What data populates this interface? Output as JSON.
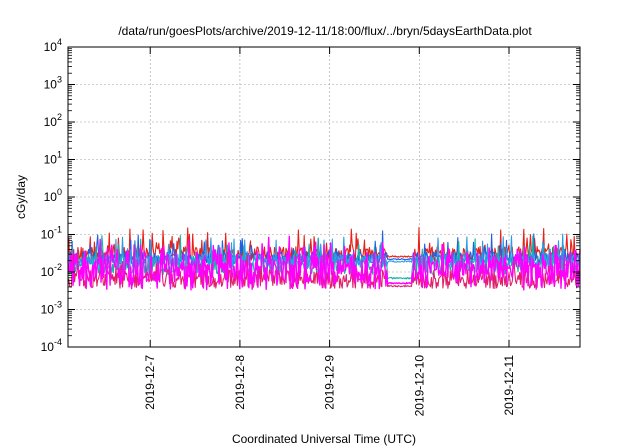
{
  "chart_data": {
    "type": "line",
    "title": "/data/run/goesPlots/archive/2019-12-11/18:00/flux/../bryn/5daysEarthData.plot",
    "xlabel": "Coordinated Universal Time (UTC)",
    "ylabel": "cGy/day",
    "yscale": "log",
    "ylim": [
      0.0001,
      10000
    ],
    "xlim": [
      "2019-12-06 02:00",
      "2019-12-11 19:00"
    ],
    "x_ticks": [
      "2019-12-7",
      "2019-12-8",
      "2019-12-9",
      "2019-12-10",
      "2019-12-11"
    ],
    "y_ticks": [
      {
        "base": "10",
        "exp": "-4",
        "value": 0.0001
      },
      {
        "base": "10",
        "exp": "-3",
        "value": 0.001
      },
      {
        "base": "10",
        "exp": "-2",
        "value": 0.01
      },
      {
        "base": "10",
        "exp": "-1",
        "value": 0.1
      },
      {
        "base": "10",
        "exp": "0",
        "value": 1
      },
      {
        "base": "10",
        "exp": "1",
        "value": 10
      },
      {
        "base": "10",
        "exp": "2",
        "value": 100
      },
      {
        "base": "10",
        "exp": "3",
        "value": 1000
      },
      {
        "base": "10",
        "exp": "4",
        "value": 10000
      }
    ],
    "grid": true,
    "gap": [
      "2019-12-09 15:30",
      "2019-12-09 22:00"
    ],
    "series": [
      {
        "color": "#e8201a",
        "level": 0.03,
        "spread": 0.2,
        "spike": 0.1,
        "gap_level": 0.026
      },
      {
        "color": "#2060e0",
        "level": 0.024,
        "spread": 0.16,
        "spike": 0.06,
        "gap_level": 0.022
      },
      {
        "color": "#12b3a8",
        "level": 0.015,
        "spread": 0.25,
        "spike": 0.08,
        "gap_level": 0.0068
      },
      {
        "color": "#2c9be8",
        "level": 0.02,
        "spread": 0.18,
        "spike": 0.06,
        "gap_level": 0.019
      },
      {
        "color": "#e0206a",
        "level": 0.0065,
        "spread": 0.25,
        "spike": 0.05,
        "gap_level": 0.0042
      },
      {
        "color": "#ff00ff",
        "level": 0.0055,
        "spread": 0.22,
        "spike": 0.55,
        "gap_level": 0.005
      }
    ]
  }
}
